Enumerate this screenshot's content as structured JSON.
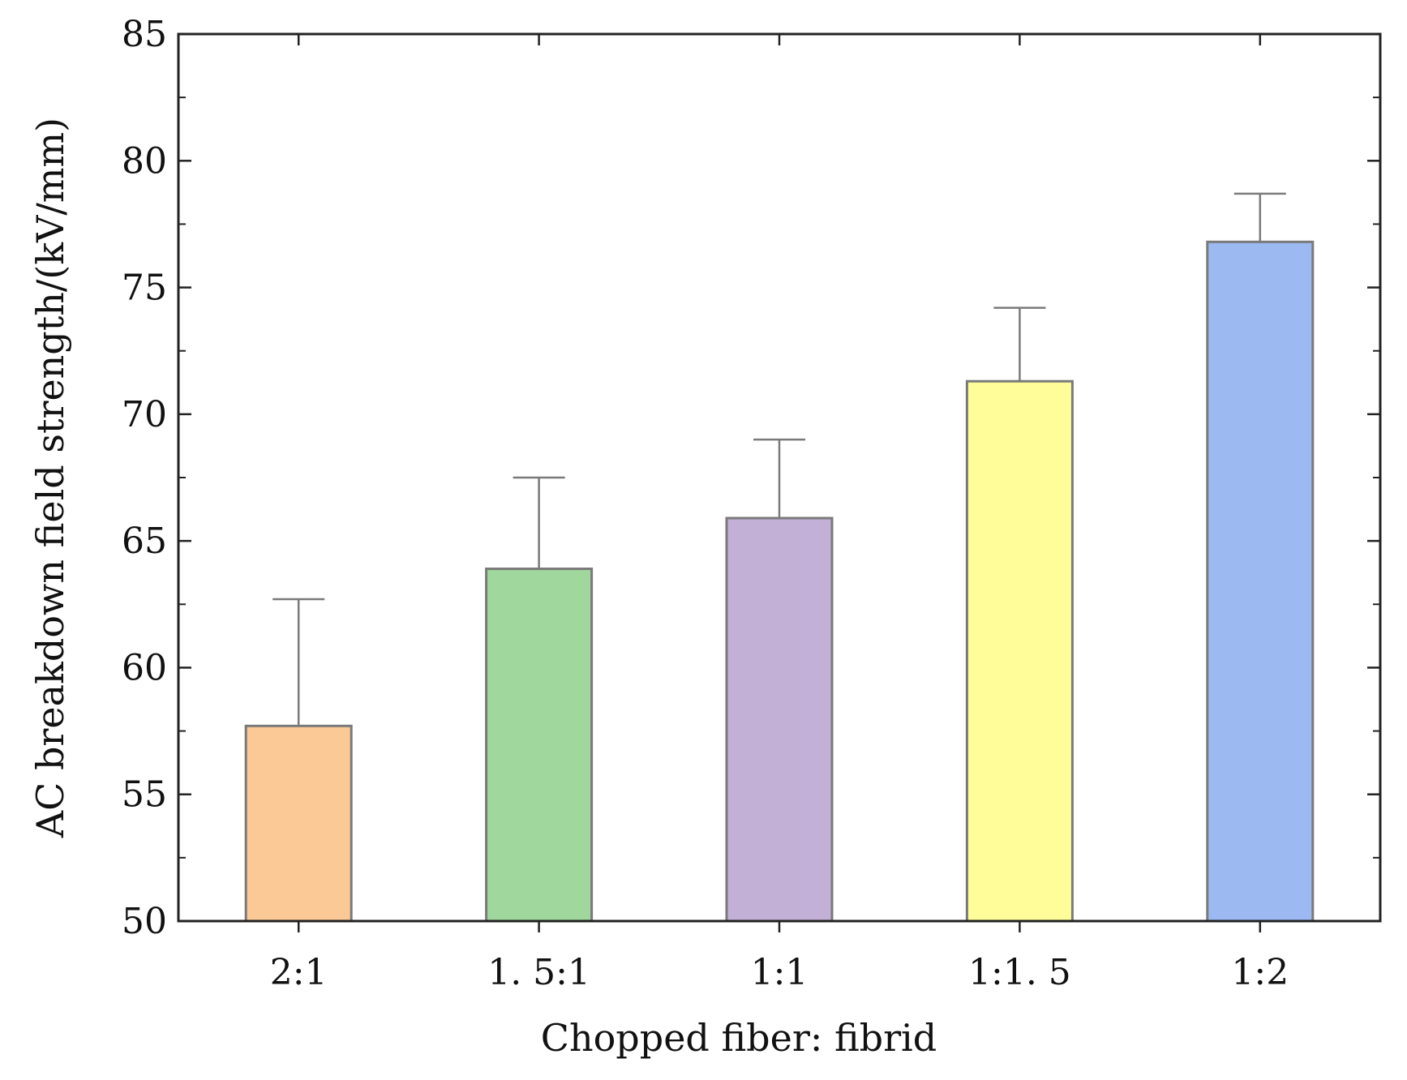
{
  "chart_data": {
    "type": "bar",
    "title": "",
    "xlabel": "Chopped fiber: fibrid",
    "ylabel": "AC breakdown field strength/(kV/mm)",
    "categories": [
      "2:1",
      "1. 5:1",
      "1:1",
      "1:1. 5",
      "1:2"
    ],
    "values": [
      57.7,
      63.9,
      65.9,
      71.3,
      76.8
    ],
    "error_plus": [
      5.0,
      3.6,
      3.1,
      2.9,
      1.9
    ],
    "ylim": [
      50,
      85
    ],
    "y_major_ticks": [
      50,
      55,
      60,
      65,
      70,
      75,
      80,
      85
    ],
    "y_tick_labels": [
      "50",
      "55",
      "60",
      "65",
      "70",
      "75",
      "80",
      "85"
    ],
    "grid": false,
    "colors": [
      "#FBC996",
      "#9FD79C",
      "#C2B0D6",
      "#FFFD9A",
      "#9DB9F1"
    ],
    "bar_edge_color": "#7A7A7A",
    "error_bar_color": "#7A7A7A"
  }
}
